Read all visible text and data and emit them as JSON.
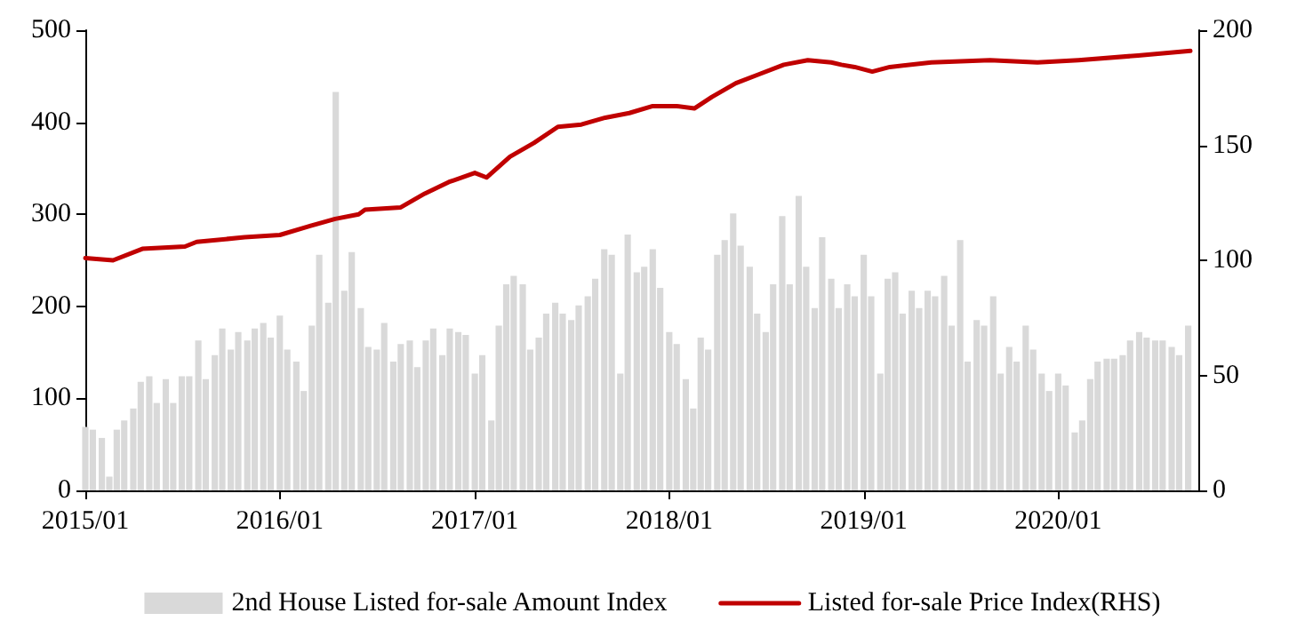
{
  "chart_data": {
    "type": "bar",
    "x": [
      "2015-01-01",
      "2015-01-15",
      "2015-02-01",
      "2015-02-15",
      "2015-03-01",
      "2015-03-15",
      "2015-04-01",
      "2015-04-15",
      "2015-05-01",
      "2015-05-15",
      "2015-06-01",
      "2015-06-15",
      "2015-07-01",
      "2015-07-15",
      "2015-08-01",
      "2015-08-15",
      "2015-09-01",
      "2015-09-15",
      "2015-10-01",
      "2015-10-15",
      "2015-11-01",
      "2015-11-15",
      "2015-12-01",
      "2015-12-15",
      "2016-01-01",
      "2016-01-15",
      "2016-02-01",
      "2016-02-15",
      "2016-03-01",
      "2016-03-15",
      "2016-04-01",
      "2016-04-15",
      "2016-05-01",
      "2016-05-15",
      "2016-06-01",
      "2016-06-15",
      "2016-07-01",
      "2016-07-15",
      "2016-08-01",
      "2016-08-15",
      "2016-09-01",
      "2016-09-15",
      "2016-10-01",
      "2016-10-15",
      "2016-11-01",
      "2016-11-15",
      "2016-12-01",
      "2016-12-15",
      "2017-01-01",
      "2017-01-15",
      "2017-02-01",
      "2017-02-15",
      "2017-03-01",
      "2017-03-15",
      "2017-04-01",
      "2017-04-15",
      "2017-05-01",
      "2017-05-15",
      "2017-06-01",
      "2017-06-15",
      "2017-07-01",
      "2017-07-15",
      "2017-08-01",
      "2017-08-15",
      "2017-09-01",
      "2017-09-15",
      "2017-10-01",
      "2017-10-15",
      "2017-11-01",
      "2017-11-15",
      "2017-12-01",
      "2017-12-15",
      "2018-01-01",
      "2018-01-15",
      "2018-02-01",
      "2018-02-15",
      "2018-03-01",
      "2018-03-15",
      "2018-04-01",
      "2018-04-15",
      "2018-05-01",
      "2018-05-15",
      "2018-06-01",
      "2018-06-15",
      "2018-07-01",
      "2018-07-15",
      "2018-08-01",
      "2018-08-15",
      "2018-09-01",
      "2018-09-15",
      "2018-10-01",
      "2018-10-15",
      "2018-11-01",
      "2018-11-15",
      "2018-12-01",
      "2018-12-15",
      "2019-01-01",
      "2019-01-15",
      "2019-02-01",
      "2019-02-15",
      "2019-03-01",
      "2019-03-15",
      "2019-04-01",
      "2019-04-15",
      "2019-05-01",
      "2019-05-15",
      "2019-06-01",
      "2019-06-15",
      "2019-07-01",
      "2019-07-15",
      "2019-08-01",
      "2019-08-15",
      "2019-09-01",
      "2019-09-15",
      "2019-10-01",
      "2019-10-15",
      "2019-11-01",
      "2019-11-15",
      "2019-12-01",
      "2019-12-15",
      "2020-01-01",
      "2020-01-15",
      "2020-02-01",
      "2020-02-15",
      "2020-03-01",
      "2020-03-15",
      "2020-04-01",
      "2020-04-15",
      "2020-05-01",
      "2020-05-15",
      "2020-06-01",
      "2020-06-15",
      "2020-07-01",
      "2020-07-15",
      "2020-08-01",
      "2020-08-15",
      "2020-09-01"
    ],
    "series": [
      {
        "name": "2nd House Listed for-sale Amount Index",
        "color": "#d9d9d9",
        "values": [
          69,
          66,
          57,
          15,
          66,
          76,
          89,
          118,
          124,
          95,
          121,
          95,
          124,
          124,
          163,
          121,
          147,
          176,
          153,
          172,
          163,
          176,
          182,
          166,
          190,
          153,
          140,
          108,
          179,
          256,
          204,
          433,
          217,
          259,
          198,
          156,
          153,
          182,
          140,
          159,
          163,
          134,
          163,
          176,
          147,
          176,
          172,
          169,
          127,
          147,
          76,
          179,
          224,
          233,
          224,
          153,
          166,
          192,
          204,
          192,
          185,
          201,
          211,
          230,
          262,
          256,
          127,
          278,
          237,
          243,
          262,
          220,
          172,
          159,
          121,
          89,
          166,
          153,
          256,
          272,
          301,
          266,
          243,
          192,
          172,
          224,
          298,
          224,
          320,
          243,
          198,
          275,
          230,
          198,
          224,
          211,
          256,
          211,
          127,
          230,
          237,
          192,
          217,
          198,
          217,
          211,
          233,
          179,
          272,
          140,
          185,
          179,
          211,
          127,
          156,
          140,
          179,
          153,
          127,
          108,
          127,
          114,
          63,
          76,
          121,
          140,
          143,
          143,
          147,
          163,
          172,
          166,
          163,
          163,
          156,
          147,
          179
        ]
      },
      {
        "name": "Listed for-sale Price Index(RHS)",
        "type": "line",
        "axis": "y2",
        "color": "#c00000",
        "x": [
          "2015-01-01",
          "2015-02-22",
          "2015-04-18",
          "2015-07-07",
          "2015-07-29",
          "2015-10-27",
          "2016-01-01",
          "2016-02-28",
          "2016-04-14",
          "2016-05-28",
          "2016-06-09",
          "2016-08-15",
          "2016-09-29",
          "2016-11-13",
          "2017-01-01",
          "2017-01-23",
          "2017-03-08",
          "2017-04-22",
          "2017-06-06",
          "2017-07-20",
          "2017-09-03",
          "2017-10-18",
          "2017-12-01",
          "2018-01-15",
          "2018-02-17",
          "2018-03-22",
          "2018-05-06",
          "2018-06-20",
          "2018-08-04",
          "2018-09-18",
          "2018-11-01",
          "2018-11-20",
          "2018-12-15",
          "2019-01-17",
          "2019-02-19",
          "2019-05-08",
          "2019-08-26",
          "2019-11-23",
          "2020-02-08",
          "2020-05-30",
          "2020-09-05"
        ],
        "values": [
          101,
          100,
          105,
          106,
          108,
          110,
          111,
          115,
          118,
          120,
          122,
          123,
          129,
          134,
          138,
          136,
          145,
          151,
          158,
          159,
          162,
          164,
          167,
          167,
          166,
          171,
          177,
          181,
          185,
          187,
          186,
          185,
          184,
          182,
          184,
          186,
          187,
          186,
          187,
          189,
          191
        ]
      }
    ],
    "xlim": [
      "2015-01-01",
      "2020-09-20"
    ],
    "xticks": [
      {
        "value": "2015-01-01",
        "label": "2015/01"
      },
      {
        "value": "2016-01-01",
        "label": "2016/01"
      },
      {
        "value": "2017-01-01",
        "label": "2017/01"
      },
      {
        "value": "2018-01-01",
        "label": "2018/01"
      },
      {
        "value": "2019-01-01",
        "label": "2019/01"
      },
      {
        "value": "2020-01-01",
        "label": "2020/01"
      }
    ],
    "ylim": [
      0,
      500
    ],
    "yticks": [
      0,
      100,
      200,
      300,
      400,
      500
    ],
    "y2lim": [
      0,
      200
    ],
    "y2ticks": [
      0,
      50,
      100,
      150,
      200
    ],
    "grid": false,
    "legend": "bottom",
    "marker": "none",
    "line_style": "solid"
  }
}
